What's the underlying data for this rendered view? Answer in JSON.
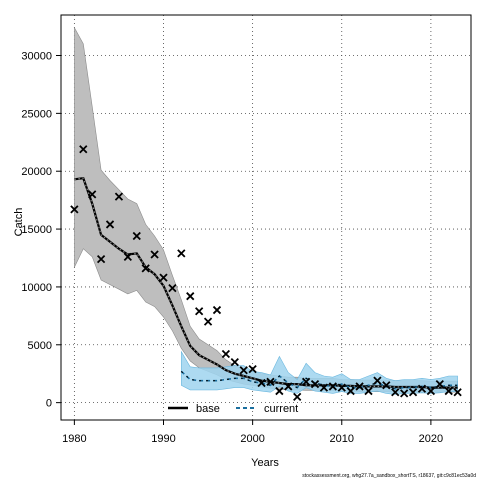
{
  "chart_data": {
    "type": "line",
    "xlabel": "Years",
    "ylabel": "Catch",
    "xlim": [
      1978.5,
      2024.5
    ],
    "ylim": [
      -1500,
      33500
    ],
    "x_ticks": [
      1980,
      1990,
      2000,
      2010,
      2020
    ],
    "y_ticks": [
      0,
      5000,
      10000,
      15000,
      20000,
      25000,
      30000
    ],
    "grid": true,
    "legend_position": "bottom-center",
    "colors": {
      "base_band": "#bebebe",
      "current_band": "#9fd3ee",
      "current_band_edge": "#6bb8df",
      "current_line": "#1a6e9e",
      "base_line": "#000000"
    },
    "series": [
      {
        "name": "base",
        "style": "solid-with-dots",
        "years": [
          1980,
          1981,
          1982,
          1983,
          1984,
          1985,
          1986,
          1987,
          1988,
          1989,
          1990,
          1991,
          1992,
          1993,
          1994,
          1995,
          1996,
          1997,
          1998,
          1999,
          2000,
          2001,
          2002,
          2003,
          2004,
          2005,
          2006,
          2007,
          2008,
          2009,
          2010,
          2011,
          2012,
          2013,
          2014,
          2015,
          2016,
          2017,
          2018,
          2019,
          2020,
          2021,
          2022,
          2023
        ],
        "median": [
          19300,
          19400,
          17200,
          14500,
          13900,
          13300,
          12800,
          12900,
          11700,
          11100,
          10100,
          8400,
          6600,
          4900,
          4100,
          3700,
          3300,
          2800,
          2500,
          2300,
          2100,
          1900,
          1800,
          1700,
          1600,
          1600,
          1500,
          1500,
          1500,
          1500,
          1450,
          1450,
          1400,
          1400,
          1400,
          1400,
          1350,
          1350,
          1350,
          1350,
          1300,
          1300,
          1300,
          1300
        ],
        "lower": [
          11700,
          13300,
          12600,
          10600,
          10200,
          9800,
          9400,
          9700,
          8700,
          8300,
          7400,
          6200,
          4700,
          3600,
          3000,
          2700,
          2400,
          2000,
          1800,
          1600,
          1500,
          1350,
          1250,
          1150,
          1100,
          1100,
          1050,
          1050,
          1050,
          1050,
          1000,
          1000,
          950,
          950,
          950,
          950,
          900,
          900,
          900,
          900,
          900,
          900,
          900,
          900
        ],
        "upper": [
          32400,
          31000,
          25600,
          20100,
          19200,
          18400,
          17600,
          17200,
          15400,
          14400,
          13200,
          11000,
          8900,
          6600,
          5500,
          5000,
          4500,
          3700,
          3200,
          2900,
          2700,
          2500,
          2400,
          2300,
          2200,
          2200,
          2100,
          2100,
          2100,
          2100,
          2000,
          2000,
          1950,
          1950,
          1950,
          1950,
          1900,
          1900,
          1900,
          1900,
          1850,
          1850,
          1850,
          1850
        ]
      },
      {
        "name": "current",
        "style": "dashed",
        "years": [
          1992,
          1993,
          1994,
          1995,
          1996,
          1997,
          1998,
          1999,
          2000,
          2001,
          2002,
          2003,
          2004,
          2005,
          2006,
          2007,
          2008,
          2009,
          2010,
          2011,
          2012,
          2013,
          2014,
          2015,
          2016,
          2017,
          2018,
          2019,
          2020,
          2021,
          2022,
          2023
        ],
        "median": [
          2700,
          2000,
          1900,
          1900,
          1900,
          2000,
          2100,
          2100,
          1800,
          1700,
          1500,
          2300,
          1700,
          1300,
          2100,
          1700,
          1500,
          1400,
          1600,
          1300,
          1300,
          1500,
          1700,
          1400,
          1200,
          1300,
          1300,
          1400,
          1300,
          1400,
          1500,
          1500
        ],
        "lower": [
          1500,
          1100,
          1100,
          1100,
          1100,
          1200,
          1300,
          1300,
          1100,
          1000,
          900,
          1400,
          1000,
          800,
          1300,
          1000,
          900,
          800,
          950,
          800,
          800,
          900,
          1000,
          800,
          700,
          800,
          800,
          850,
          800,
          850,
          950,
          950
        ],
        "upper": [
          4400,
          3100,
          3000,
          3000,
          3000,
          3100,
          3200,
          3200,
          2700,
          2600,
          2400,
          4000,
          2600,
          2000,
          3400,
          2600,
          2300,
          2200,
          2500,
          2000,
          2000,
          2300,
          2600,
          2100,
          1900,
          2000,
          2000,
          2100,
          2000,
          2100,
          2300,
          2300
        ]
      }
    ],
    "observations": {
      "marker": "x",
      "years": [
        1980,
        1981,
        1982,
        1983,
        1984,
        1985,
        1986,
        1987,
        1988,
        1989,
        1990,
        1991,
        1992,
        1993,
        1994,
        1995,
        1996,
        1997,
        1998,
        1999,
        2000,
        2001,
        2002,
        2003,
        2004,
        2005,
        2006,
        2007,
        2008,
        2009,
        2010,
        2011,
        2012,
        2013,
        2014,
        2015,
        2016,
        2017,
        2018,
        2019,
        2020,
        2021,
        2022,
        2023
      ],
      "values": [
        16700,
        21900,
        18000,
        12400,
        15400,
        17800,
        12600,
        14400,
        11600,
        12800,
        10800,
        9900,
        12900,
        9200,
        7900,
        7000,
        8000,
        4200,
        3500,
        2800,
        2900,
        1700,
        1800,
        1000,
        1400,
        500,
        1800,
        1600,
        1300,
        1400,
        1300,
        1000,
        1400,
        1000,
        1900,
        1500,
        900,
        800,
        900,
        1200,
        1000,
        1600,
        1000,
        900
      ]
    },
    "footer": "stockassessment.org, whg27.7a_sandbox_shortTS, r18637, git:c9c81ec53a0d"
  }
}
